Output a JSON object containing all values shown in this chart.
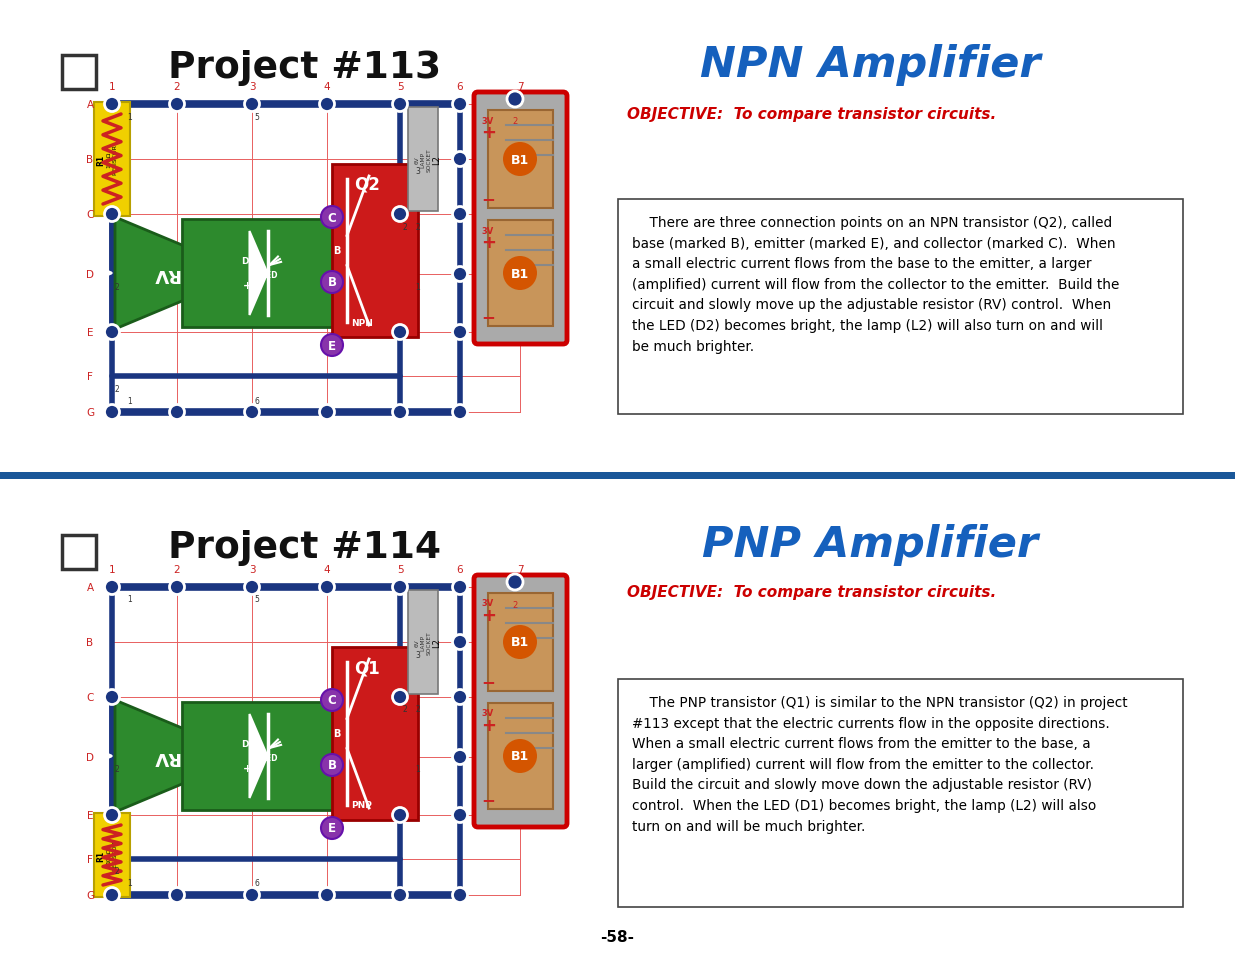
{
  "page_bg": "#ffffff",
  "top_title_left": "Project #113",
  "top_title_right": "NPN Amplifier",
  "title_right_color": "#1560bd",
  "title_left_color": "#111111",
  "objective_text": "OBJECTIVE:  To compare transistor circuits.",
  "objective_color": "#cc0000",
  "npn_body": "    There are three connection points on an NPN transistor (Q2), called\nbase (marked B), emitter (marked E), and collector (marked C).  When\na small electric current flows from the base to the emitter, a larger\n(amplified) current will flow from the collector to the emitter.  Build the\ncircuit and slowly move up the adjustable resistor (RV) control.  When\nthe LED (D2) becomes bright, the lamp (L2) will also turn on and will\nbe much brighter.",
  "bottom_title_left": "Project #114",
  "bottom_title_right": "PNP Amplifier",
  "pnp_body": "    The PNP transistor (Q1) is similar to the NPN transistor (Q2) in project\n#113 except that the electric currents flow in the opposite directions.\nWhen a small electric current flows from the emitter to the base, a\nlarger (amplified) current will flow from the emitter to the collector.\nBuild the circuit and slowly move down the adjustable resistor (RV)\ncontrol.  When the LED (D1) becomes bright, the lamp (L2) will also\nturn on and will be much brighter.",
  "divider_color": "#1a5799",
  "page_number": "-58-",
  "grid_red": "#e86060",
  "circuit_blue": "#1a3580",
  "node_blue": "#1a3580",
  "resistor_yellow": "#f0d000",
  "resistor_red": "#cc2222",
  "green_color": "#2d8a2d",
  "red_color": "#cc1a1a",
  "battery_gray": "#999999",
  "battery_tan": "#c8955a",
  "purple_dot": "#8833aa",
  "lamp_gray": "#bbbbbb"
}
